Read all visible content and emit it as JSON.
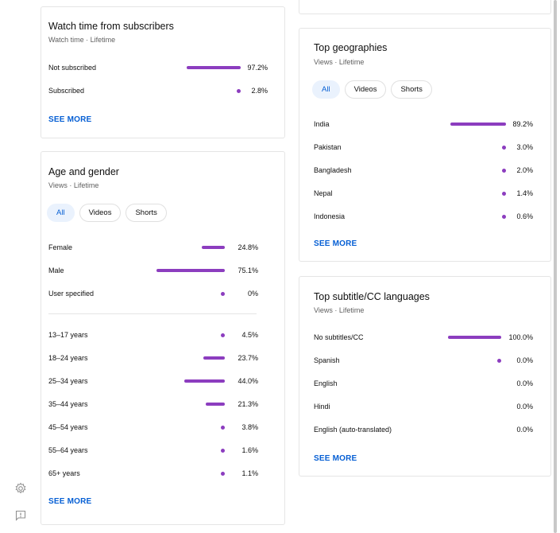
{
  "watch_time": {
    "title": "Watch time from subscribers",
    "subtitle": "Watch time · Lifetime",
    "rows": [
      {
        "label": "Not subscribed",
        "value": "97.2%",
        "fraction": 0.972
      },
      {
        "label": "Subscribed",
        "value": "2.8%",
        "fraction": 0.028
      }
    ],
    "see_more": "SEE MORE"
  },
  "age_gender": {
    "title": "Age and gender",
    "subtitle": "Views · Lifetime",
    "chips": [
      "All",
      "Videos",
      "Shorts"
    ],
    "gender_rows": [
      {
        "label": "Female",
        "value": "24.8%",
        "fraction": 0.248
      },
      {
        "label": "Male",
        "value": "75.1%",
        "fraction": 0.751
      },
      {
        "label": "User specified",
        "value": "0%",
        "fraction": 0
      }
    ],
    "age_rows": [
      {
        "label": "13–17 years",
        "value": "4.5%",
        "fraction": 0.045
      },
      {
        "label": "18–24 years",
        "value": "23.7%",
        "fraction": 0.237
      },
      {
        "label": "25–34 years",
        "value": "44.0%",
        "fraction": 0.44
      },
      {
        "label": "35–44 years",
        "value": "21.3%",
        "fraction": 0.213
      },
      {
        "label": "45–54 years",
        "value": "3.8%",
        "fraction": 0.038
      },
      {
        "label": "55–64 years",
        "value": "1.6%",
        "fraction": 0.016
      },
      {
        "label": "65+ years",
        "value": "1.1%",
        "fraction": 0.011
      }
    ],
    "see_more": "SEE MORE"
  },
  "geographies": {
    "title": "Top geographies",
    "subtitle": "Views · Lifetime",
    "chips": [
      "All",
      "Videos",
      "Shorts"
    ],
    "rows": [
      {
        "label": "India",
        "value": "89.2%",
        "fraction": 0.892
      },
      {
        "label": "Pakistan",
        "value": "3.0%",
        "fraction": 0.03
      },
      {
        "label": "Bangladesh",
        "value": "2.0%",
        "fraction": 0.02
      },
      {
        "label": "Nepal",
        "value": "1.4%",
        "fraction": 0.014
      },
      {
        "label": "Indonesia",
        "value": "0.6%",
        "fraction": 0.006
      }
    ],
    "see_more": "SEE MORE"
  },
  "subtitles": {
    "title": "Top subtitle/CC languages",
    "subtitle": "Views · Lifetime",
    "rows": [
      {
        "label": "No subtitles/CC",
        "value": "100.0%",
        "fraction": 1.0,
        "marker": "bar"
      },
      {
        "label": "Spanish",
        "value": "0.0%",
        "fraction": 0.0,
        "marker": "dot"
      },
      {
        "label": "English",
        "value": "0.0%",
        "fraction": 0.0,
        "marker": "none"
      },
      {
        "label": "Hindi",
        "value": "0.0%",
        "fraction": 0.0,
        "marker": "none"
      },
      {
        "label": "English (auto-translated)",
        "value": "0.0%",
        "fraction": 0.0,
        "marker": "none"
      }
    ],
    "see_more": "SEE MORE"
  },
  "sidebar_icons": [
    "gear-icon",
    "feedback-icon"
  ],
  "colors": {
    "bar": "#8c3dbf",
    "link": "#065fd4",
    "chip_selected_bg": "#eaf2fd"
  }
}
